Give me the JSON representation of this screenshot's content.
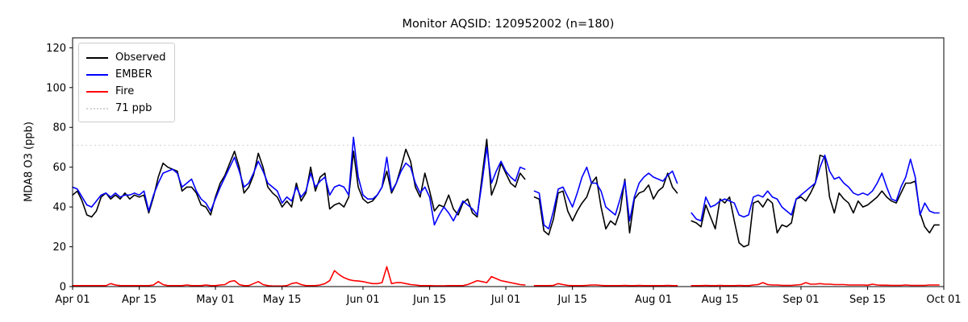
{
  "chart_data": {
    "type": "line",
    "title": "Monitor AQSID: 120952002 (n=180)",
    "ylabel": "MDA8 O3 (ppb)",
    "xlabel": "",
    "ylim": [
      0,
      125
    ],
    "yticks": [
      0,
      20,
      40,
      60,
      80,
      100,
      120
    ],
    "x_axis": {
      "unit": "day index from Apr 01",
      "x_max": 183,
      "tick_positions": [
        0,
        14,
        30,
        44,
        61,
        75,
        91,
        105,
        122,
        136,
        153,
        167,
        183
      ],
      "tick_labels": [
        "Apr 01",
        "Apr 15",
        "May 01",
        "May 15",
        "Jun 01",
        "Jun 15",
        "Jul 01",
        "Jul 15",
        "Aug 01",
        "Aug 15",
        "Sep 01",
        "Sep 15",
        "Oct 01"
      ]
    },
    "threshold": {
      "label": "71 ppb",
      "value": 71,
      "color": "#d3d3d3",
      "style": "dotted"
    },
    "legend": {
      "position": "upper-left",
      "entries": [
        {
          "label": "Observed",
          "color": "#000000",
          "style": "solid"
        },
        {
          "label": "EMBER",
          "color": "#0000ff",
          "style": "solid"
        },
        {
          "label": "Fire",
          "color": "#ff0000",
          "style": "solid"
        },
        {
          "label": "71 ppb",
          "color": "#d3d3d3",
          "style": "dotted"
        }
      ]
    },
    "gaps_note": "missing days: Jul 06, Aug 07, Aug 08 (nulls)",
    "series": [
      {
        "name": "Observed",
        "color": "#000000",
        "values": [
          46,
          48,
          43,
          36,
          35,
          38,
          45,
          47,
          44,
          46,
          44,
          47,
          44,
          46,
          45,
          46,
          37,
          45,
          55,
          62,
          60,
          59,
          58,
          48,
          50,
          50,
          47,
          41,
          40,
          36,
          45,
          52,
          56,
          62,
          68,
          60,
          47,
          50,
          56,
          67,
          60,
          50,
          47,
          45,
          40,
          43,
          40,
          52,
          43,
          47,
          60,
          48,
          55,
          57,
          39,
          41,
          42,
          40,
          45,
          68,
          50,
          44,
          42,
          43,
          46,
          50,
          58,
          47,
          52,
          60,
          69,
          63,
          50,
          45,
          57,
          48,
          38,
          41,
          40,
          46,
          39,
          36,
          42,
          44,
          37,
          35,
          55,
          74,
          46,
          52,
          62,
          57,
          52,
          50,
          57,
          54,
          null,
          45,
          44,
          28,
          26,
          34,
          47,
          48,
          38,
          33,
          38,
          42,
          45,
          52,
          55,
          40,
          29,
          33,
          31,
          38,
          54,
          27,
          44,
          47,
          48,
          51,
          44,
          48,
          50,
          57,
          50,
          47,
          null,
          null,
          33,
          32,
          30,
          41,
          35,
          29,
          44,
          42,
          45,
          33,
          22,
          20,
          21,
          42,
          43,
          40,
          44,
          42,
          27,
          31,
          30,
          32,
          44,
          45,
          43,
          47,
          52,
          66,
          65,
          45,
          37,
          47,
          44,
          42,
          37,
          43,
          40,
          41,
          43,
          45,
          48,
          45,
          43,
          42,
          47,
          52,
          52,
          53,
          37,
          30,
          27,
          31,
          31
        ]
      },
      {
        "name": "EMBER",
        "color": "#0000ff",
        "values": [
          50,
          49,
          45,
          41,
          40,
          43,
          46,
          47,
          45,
          47,
          45,
          46,
          46,
          47,
          46,
          48,
          38,
          46,
          52,
          57,
          58,
          59,
          57,
          50,
          52,
          54,
          48,
          44,
          42,
          38,
          44,
          50,
          55,
          60,
          65,
          58,
          50,
          52,
          57,
          63,
          58,
          52,
          50,
          48,
          42,
          45,
          43,
          50,
          45,
          48,
          57,
          50,
          53,
          55,
          46,
          50,
          51,
          50,
          46,
          75,
          55,
          46,
          44,
          44,
          46,
          50,
          65,
          48,
          52,
          58,
          62,
          60,
          52,
          47,
          50,
          45,
          31,
          36,
          40,
          37,
          33,
          38,
          43,
          41,
          39,
          36,
          52,
          70,
          52,
          58,
          63,
          58,
          55,
          53,
          60,
          59,
          null,
          48,
          47,
          31,
          29,
          38,
          49,
          50,
          45,
          40,
          47,
          55,
          60,
          52,
          52,
          48,
          40,
          38,
          36,
          44,
          53,
          33,
          45,
          52,
          55,
          57,
          55,
          54,
          53,
          56,
          58,
          52,
          null,
          null,
          37,
          34,
          33,
          45,
          40,
          41,
          43,
          44,
          43,
          42,
          36,
          35,
          36,
          45,
          46,
          45,
          48,
          45,
          44,
          40,
          38,
          36,
          44,
          46,
          48,
          50,
          52,
          60,
          66,
          58,
          54,
          55,
          52,
          50,
          47,
          46,
          47,
          46,
          48,
          52,
          57,
          50,
          44,
          43,
          50,
          55,
          64,
          55,
          36,
          42,
          38,
          37,
          37
        ]
      },
      {
        "name": "Fire",
        "color": "#ff0000",
        "values": [
          0.5,
          0.5,
          0.5,
          0.5,
          0.5,
          0.5,
          0.5,
          0.5,
          1.5,
          0.8,
          0.5,
          0.5,
          0.5,
          0.5,
          0.5,
          0.5,
          0.5,
          0.8,
          2.5,
          1.0,
          0.5,
          0.5,
          0.5,
          0.5,
          0.8,
          0.5,
          0.5,
          0.5,
          0.8,
          0.5,
          0.5,
          0.8,
          1.0,
          2.5,
          3.0,
          1.0,
          0.5,
          0.5,
          1.5,
          2.5,
          1.0,
          0.5,
          0.3,
          0.3,
          0.3,
          0.5,
          1.5,
          2.0,
          1.0,
          0.5,
          0.5,
          0.5,
          0.8,
          1.5,
          3.0,
          8.0,
          6.0,
          4.5,
          3.5,
          3.0,
          2.8,
          2.5,
          2.0,
          1.5,
          1.5,
          2.0,
          10.0,
          1.5,
          2.0,
          2.0,
          1.5,
          1.0,
          0.8,
          0.5,
          0.5,
          0.5,
          0.4,
          0.4,
          0.4,
          0.5,
          0.5,
          0.5,
          0.5,
          1.0,
          2.0,
          3.0,
          2.5,
          2.0,
          5.0,
          4.0,
          3.0,
          2.5,
          2.0,
          1.5,
          1.0,
          0.8,
          null,
          0.5,
          0.5,
          0.5,
          0.5,
          0.6,
          1.5,
          1.0,
          0.6,
          0.5,
          0.5,
          0.5,
          0.6,
          0.8,
          0.8,
          0.6,
          0.5,
          0.5,
          0.5,
          0.5,
          0.6,
          0.5,
          0.5,
          0.6,
          0.5,
          0.5,
          0.5,
          0.5,
          0.5,
          0.6,
          0.5,
          0.5,
          null,
          null,
          0.5,
          0.5,
          0.5,
          0.6,
          0.5,
          0.5,
          0.6,
          0.5,
          0.5,
          0.5,
          0.6,
          0.5,
          0.5,
          0.8,
          1.0,
          2.0,
          1.0,
          0.8,
          0.8,
          0.6,
          0.6,
          0.6,
          0.8,
          1.0,
          2.0,
          1.2,
          1.2,
          1.5,
          1.2,
          1.2,
          1.0,
          1.0,
          1.0,
          0.8,
          0.8,
          0.8,
          0.8,
          0.7,
          1.2,
          0.8,
          0.7,
          0.7,
          0.6,
          0.6,
          0.6,
          0.8,
          0.6,
          0.6,
          0.6,
          0.6,
          0.8,
          0.8,
          0.8
        ]
      }
    ]
  }
}
